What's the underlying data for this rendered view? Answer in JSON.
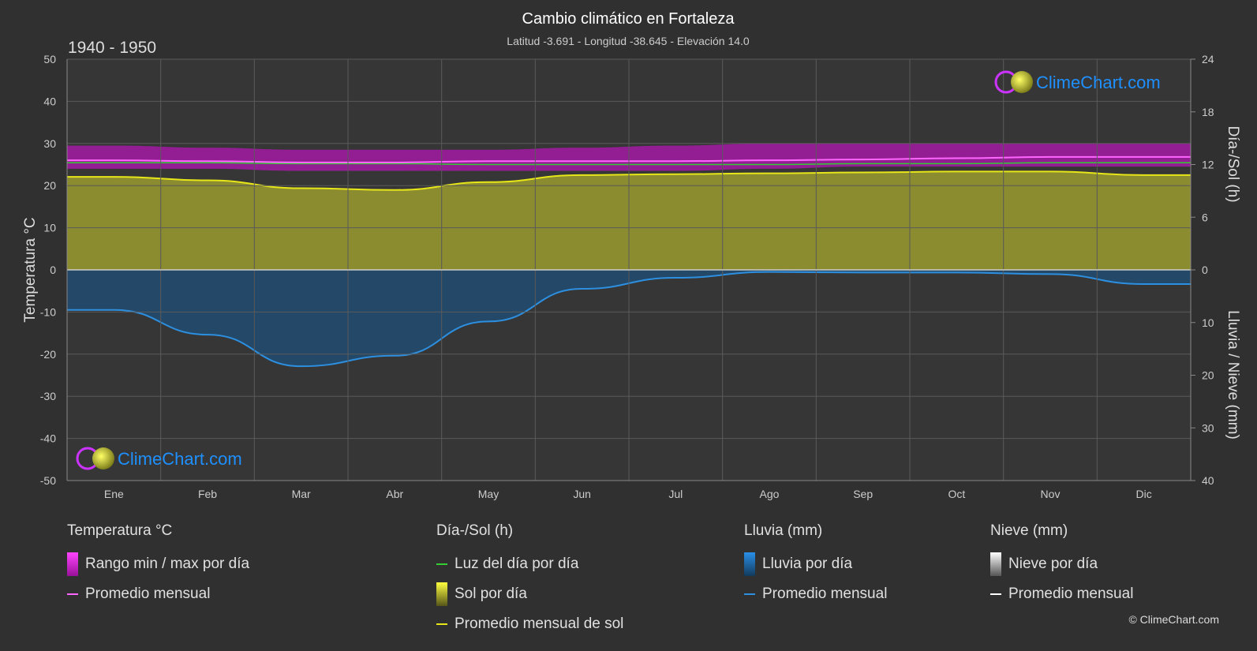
{
  "title": "Cambio climático en Fortaleza",
  "subtitle": "Latitud -3.691 - Longitud -38.645 - Elevación 14.0",
  "period": "1940 - 1950",
  "brand": "ClimeChart.com",
  "copyright": "© ClimeChart.com",
  "colors": {
    "background": "#303030",
    "temp_range": "#c01cc0",
    "temp_avg": "#ff66ff",
    "daylight": "#33cc33",
    "sun_fill": "#a8a832",
    "sun_avg": "#e6e619",
    "rain_fill": "#1f5a8c",
    "rain_avg": "#2d8fe0",
    "snow_avg": "#ffffff",
    "brand_blue": "#1e90ff"
  },
  "chart_data": {
    "type": "area",
    "categories": [
      "Ene",
      "Feb",
      "Mar",
      "Abr",
      "May",
      "Jun",
      "Jul",
      "Ago",
      "Sep",
      "Oct",
      "Nov",
      "Dic"
    ],
    "y_left": {
      "label": "Temperatura °C",
      "range": [
        -50,
        50
      ],
      "ticks": [
        50,
        40,
        30,
        20,
        10,
        0,
        -10,
        -20,
        -30,
        -40,
        -50
      ]
    },
    "y_right_top": {
      "label": "Día-/Sol (h)",
      "range": [
        0,
        24
      ],
      "ticks": [
        24,
        18,
        12,
        6,
        0
      ]
    },
    "y_right_bottom": {
      "label": "Lluvia / Nieve (mm)",
      "range": [
        0,
        40
      ],
      "ticks": [
        0,
        10,
        20,
        30,
        40
      ]
    },
    "series": [
      {
        "name": "Rango min / max por día",
        "min": [
          24.0,
          24.0,
          23.5,
          23.5,
          23.5,
          23.5,
          23.5,
          24.0,
          24.5,
          24.5,
          24.5,
          24.5
        ],
        "max": [
          29.5,
          29.0,
          28.5,
          28.5,
          28.5,
          29.0,
          29.5,
          30.0,
          30.0,
          30.0,
          30.0,
          30.0
        ]
      },
      {
        "name": "Promedio mensual",
        "kind": "temperature",
        "values": [
          26.0,
          25.8,
          25.5,
          25.5,
          25.8,
          25.8,
          25.8,
          26.0,
          26.2,
          26.5,
          26.8,
          26.8
        ]
      },
      {
        "name": "Luz del día por día",
        "values": [
          12.2,
          12.2,
          12.1,
          12.1,
          12.0,
          12.0,
          12.0,
          12.0,
          12.1,
          12.1,
          12.2,
          12.2
        ]
      },
      {
        "name": "Promedio mensual de sol",
        "values": [
          10.6,
          10.2,
          9.3,
          9.1,
          10.0,
          10.8,
          10.9,
          11.0,
          11.1,
          11.2,
          11.2,
          10.8
        ]
      },
      {
        "name": "Promedio mensual",
        "kind": "rain",
        "values": [
          7.6,
          12.3,
          18.3,
          16.3,
          9.8,
          3.6,
          1.5,
          0.4,
          0.5,
          0.5,
          0.8,
          2.7
        ]
      },
      {
        "name": "Promedio mensual",
        "kind": "snow",
        "values": [
          0,
          0,
          0,
          0,
          0,
          0,
          0,
          0,
          0,
          0,
          0,
          0
        ]
      }
    ]
  },
  "legend": {
    "temp_header": "Temperatura °C",
    "temp_range": "Rango min / max por día",
    "temp_avg": "Promedio mensual",
    "sun_header": "Día-/Sol (h)",
    "daylight": "Luz del día por día",
    "sun_day": "Sol por día",
    "sun_avg": "Promedio mensual de sol",
    "rain_header": "Lluvia (mm)",
    "rain_day": "Lluvia por día",
    "rain_avg": "Promedio mensual",
    "snow_header": "Nieve (mm)",
    "snow_day": "Nieve por día",
    "snow_avg": "Promedio mensual"
  }
}
